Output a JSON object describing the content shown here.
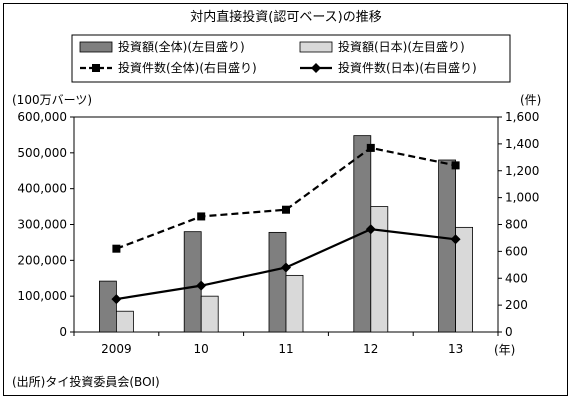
{
  "chart_data": {
    "type": "bar",
    "title": "対内直接投資(認可ベース)の推移",
    "source": "(出所)タイ投資委員会(BOI)",
    "left_axis_label": "(100万バーツ)",
    "right_axis_label": "(件)",
    "x_unit_label": "(年)",
    "categories": [
      "2009",
      "10",
      "11",
      "12",
      "13"
    ],
    "ylim_left": [
      0,
      600000
    ],
    "ylim_right": [
      0,
      1600
    ],
    "yticks_left": [
      "0",
      "100,000",
      "200,000",
      "300,000",
      "400,000",
      "500,000",
      "600,000"
    ],
    "yticks_right": [
      "0",
      "200",
      "400",
      "600",
      "800",
      "1,000",
      "1,200",
      "1,400",
      "1,600"
    ],
    "grid": false,
    "legend_position": "top",
    "series": [
      {
        "name": "投資額(全体)(左目盛り)",
        "kind": "bar",
        "axis": "left",
        "color": "#7f7f7f",
        "values": [
          142000,
          280000,
          278000,
          548000,
          480000
        ]
      },
      {
        "name": "投資額(日本)(左目盛り)",
        "kind": "bar",
        "axis": "left",
        "color": "#d9d9d9",
        "values": [
          58000,
          100000,
          158000,
          350000,
          292000
        ]
      },
      {
        "name": "投資件数(全体)(右目盛り)",
        "kind": "line",
        "style": "dashed-square",
        "axis": "right",
        "color": "#000000",
        "values": [
          620,
          860,
          910,
          1370,
          1240
        ]
      },
      {
        "name": "投資件数(日本)(右目盛り)",
        "kind": "line",
        "style": "solid-diamond",
        "axis": "right",
        "color": "#000000",
        "values": [
          245,
          345,
          480,
          765,
          690
        ]
      }
    ]
  }
}
